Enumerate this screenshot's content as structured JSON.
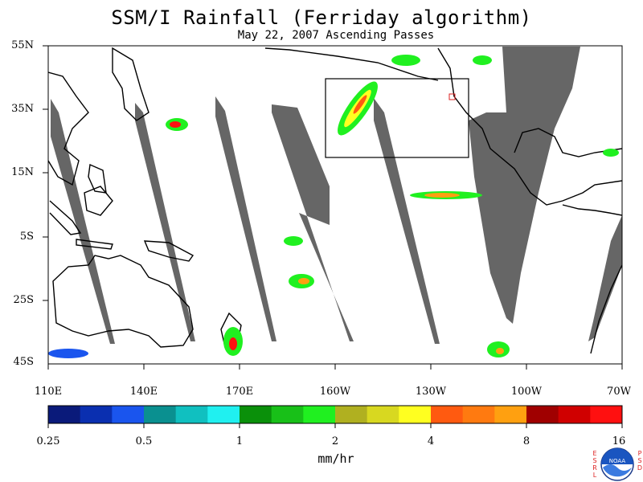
{
  "title": "SSM/I Rainfall (Ferriday algorithm)",
  "subtitle": "May 22, 2007  Ascending Passes",
  "lat_labels": [
    "55N",
    "35N",
    "15N",
    "5S",
    "25S",
    "45S"
  ],
  "lon_labels": [
    "110E",
    "140E",
    "170E",
    "160W",
    "130W",
    "100W",
    "70W"
  ],
  "colorbar": {
    "tick_labels": [
      "0.25",
      "0.5",
      "1",
      "2",
      "4",
      "8",
      "16"
    ],
    "units": "mm/hr",
    "colors": [
      "#0a1a7a",
      "#0a2fb0",
      "#1a55ee",
      "#0a9090",
      "#10c0c0",
      "#20f0f0",
      "#0a900a",
      "#18c018",
      "#20f020",
      "#b0b020",
      "#d8d820",
      "#ffff20",
      "#ff5a10",
      "#ff7a10",
      "#ffa010",
      "#a00000",
      "#d00000",
      "#ff1010"
    ]
  },
  "logo": {
    "name": "NOAA",
    "left_letters": "ESRL",
    "right_letters": "PSD"
  },
  "map": {
    "ocean_color": "#ffffff",
    "coastline_color": "#000000",
    "no_data_color": "#666666",
    "highlight_box": true
  }
}
